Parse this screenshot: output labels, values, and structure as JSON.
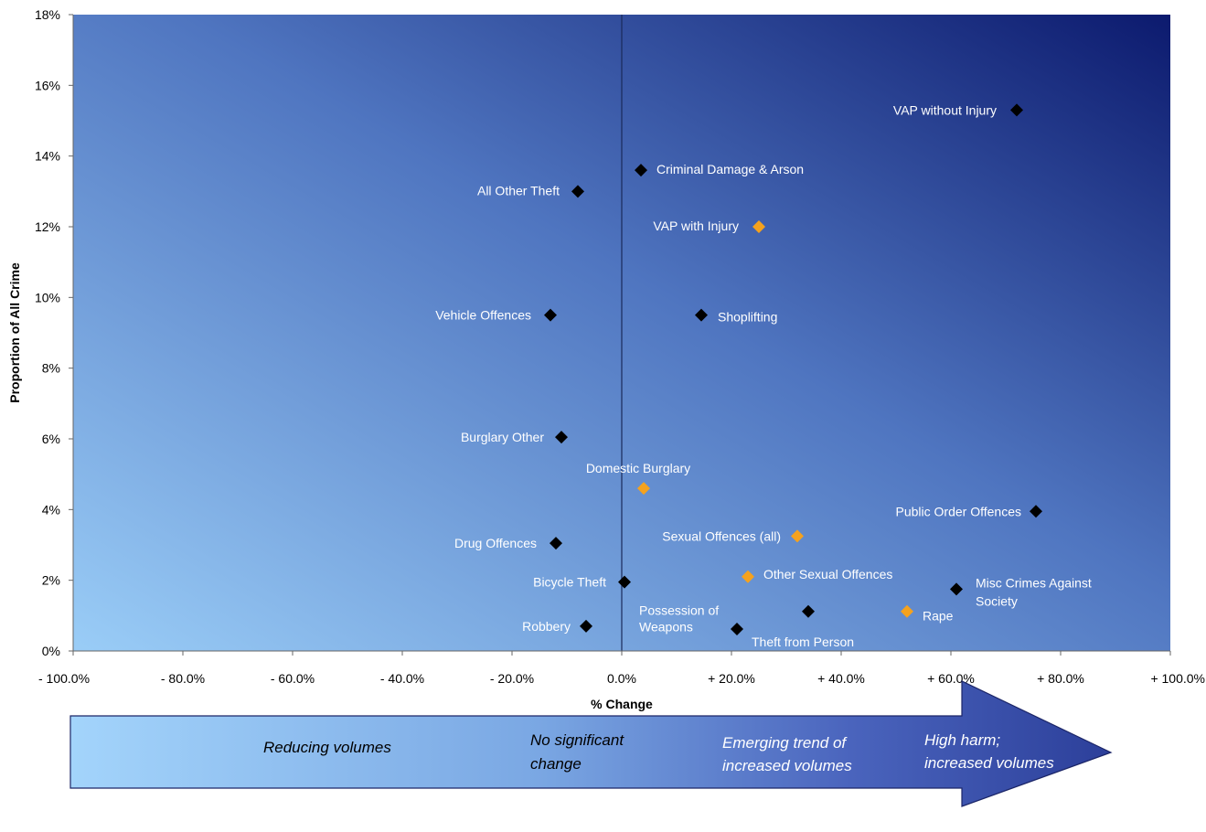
{
  "chart_data": {
    "type": "scatter",
    "xlabel": "% Change",
    "ylabel": "Proportion of All Crime",
    "xlim": [
      -100,
      100
    ],
    "ylim": [
      0,
      18
    ],
    "x_ticks": [
      "- 100.0%",
      "- 80.0%",
      "- 60.0%",
      "- 40.0%",
      "- 20.0%",
      "0.0%",
      "+ 20.0%",
      "+ 40.0%",
      "+ 60.0%",
      "+ 80.0%",
      "+ 100.0%"
    ],
    "y_ticks": [
      "0%",
      "2%",
      "4%",
      "6%",
      "8%",
      "10%",
      "12%",
      "14%",
      "16%",
      "18%"
    ],
    "colors": {
      "black": "#000000",
      "orange": "#f5a21e",
      "label": "#ffffff",
      "grad_light": "#9acdf7",
      "grad_dark": "#0c1a6e"
    },
    "points": [
      {
        "label": "VAP without Injury",
        "x": 72,
        "y": 15.3,
        "color": "black"
      },
      {
        "label": "Criminal Damage & Arson",
        "x": 3.5,
        "y": 13.6,
        "color": "black"
      },
      {
        "label": "All Other Theft",
        "x": -8,
        "y": 13.0,
        "color": "black"
      },
      {
        "label": "VAP with Injury",
        "x": 25,
        "y": 12.0,
        "color": "orange"
      },
      {
        "label": "Vehicle Offences",
        "x": -13,
        "y": 9.5,
        "color": "black"
      },
      {
        "label": "Shoplifting",
        "x": 14.5,
        "y": 9.5,
        "color": "black"
      },
      {
        "label": "Burglary Other",
        "x": -11,
        "y": 6.05,
        "color": "black"
      },
      {
        "label": "Domestic Burglary",
        "x": 4,
        "y": 4.6,
        "color": "orange"
      },
      {
        "label": "Public Order Offences",
        "x": 75.5,
        "y": 3.95,
        "color": "black"
      },
      {
        "label": "Sexual Offences (all)",
        "x": 32,
        "y": 3.25,
        "color": "orange"
      },
      {
        "label": "Drug Offences",
        "x": -12,
        "y": 3.05,
        "color": "black"
      },
      {
        "label": "Bicycle Theft",
        "x": 0.5,
        "y": 1.95,
        "color": "black"
      },
      {
        "label": "Other Sexual Offences",
        "x": 23,
        "y": 2.1,
        "color": "orange"
      },
      {
        "label": "Misc Crimes Against Society",
        "x": 61,
        "y": 1.75,
        "color": "black"
      },
      {
        "label": "Possession of Weapons",
        "x": 34,
        "y": 1.12,
        "color": "black"
      },
      {
        "label": "Rape",
        "x": 52,
        "y": 1.12,
        "color": "orange"
      },
      {
        "label": "Robbery",
        "x": -6.5,
        "y": 0.7,
        "color": "black"
      },
      {
        "label": "Theft from Person",
        "x": 21,
        "y": 0.62,
        "color": "black"
      }
    ]
  },
  "arrow": {
    "reducing": "Reducing volumes",
    "no_change_1": "No significant",
    "no_change_2": "change",
    "emerging_1": "Emerging trend of",
    "emerging_2": "increased volumes",
    "high_harm_1": "High harm;",
    "high_harm_2": "increased volumes"
  }
}
